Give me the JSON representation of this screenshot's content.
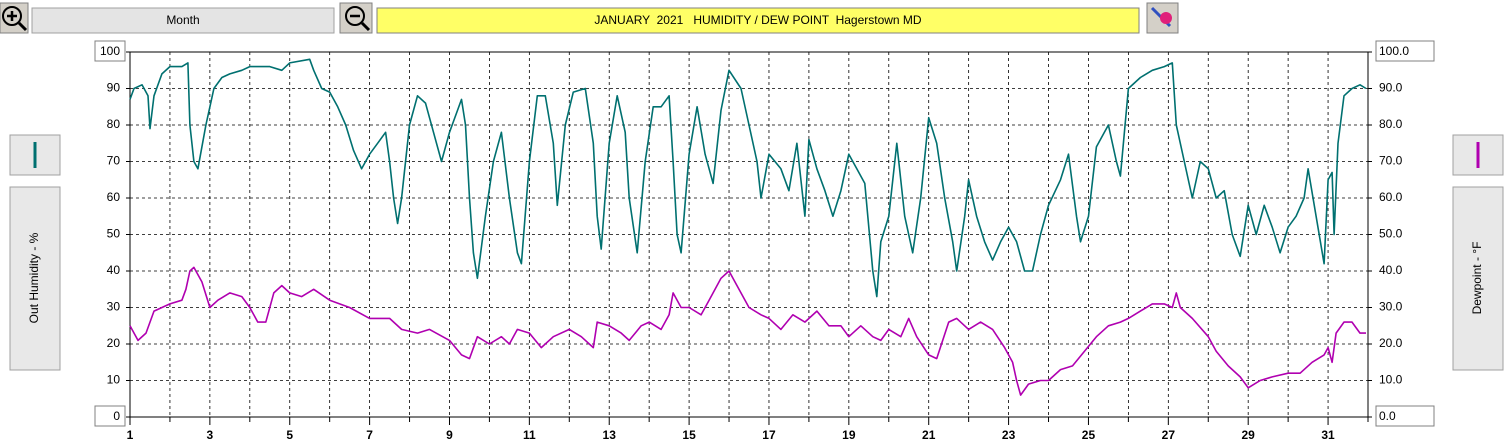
{
  "chart_data": {
    "type": "line",
    "title": "JANUARY  2021   HUMIDITY / DEW POINT  Hagerstown MD",
    "period_button": "Month",
    "ylabel": "Out Humidity - %",
    "y2label": "Dewpoint - °F",
    "xlim": [
      1,
      32
    ],
    "xticks": [
      1,
      3,
      5,
      7,
      9,
      11,
      13,
      15,
      17,
      19,
      21,
      23,
      25,
      27,
      29,
      31
    ],
    "x_minor_ticks": [
      2,
      4,
      6,
      8,
      10,
      12,
      14,
      16,
      18,
      20,
      22,
      24,
      26,
      28,
      30,
      32
    ],
    "ylim": [
      0,
      100
    ],
    "yticks": [
      0,
      10,
      20,
      30,
      40,
      50,
      60,
      70,
      80,
      90,
      100
    ],
    "y2lim": [
      0,
      100
    ],
    "y2ticks": [
      {
        "value": 0,
        "label": "0.0"
      },
      {
        "value": 10,
        "label": "10.0"
      },
      {
        "value": 20,
        "label": "20.0"
      },
      {
        "value": 30,
        "label": "30.0"
      },
      {
        "value": 40,
        "label": "40.0"
      },
      {
        "value": 50,
        "label": "50.0"
      },
      {
        "value": 60,
        "label": "60.0"
      },
      {
        "value": 70,
        "label": "70.0"
      },
      {
        "value": 80,
        "label": "80.0"
      },
      {
        "value": 90,
        "label": "90.0"
      },
      {
        "value": 100,
        "label": "100.0"
      }
    ],
    "grid": true,
    "series": [
      {
        "name": "Out Humidity",
        "color": "#007070",
        "axis": "y",
        "x": [
          1.0,
          1.1,
          1.3,
          1.45,
          1.5,
          1.6,
          1.8,
          2.0,
          2.3,
          2.45,
          2.5,
          2.6,
          2.7,
          2.9,
          3.0,
          3.1,
          3.3,
          3.5,
          3.8,
          4.0,
          4.5,
          4.8,
          5.0,
          5.5,
          5.6,
          5.8,
          6.0,
          6.2,
          6.4,
          6.6,
          6.8,
          7.0,
          7.2,
          7.4,
          7.5,
          7.6,
          7.7,
          7.8,
          8.0,
          8.2,
          8.4,
          8.6,
          8.8,
          9.0,
          9.2,
          9.3,
          9.4,
          9.5,
          9.6,
          9.7,
          9.9,
          10.1,
          10.3,
          10.5,
          10.7,
          10.8,
          11.0,
          11.2,
          11.4,
          11.6,
          11.7,
          11.9,
          12.1,
          12.4,
          12.6,
          12.7,
          12.8,
          13.0,
          13.2,
          13.4,
          13.5,
          13.7,
          13.9,
          14.1,
          14.3,
          14.5,
          14.6,
          14.7,
          14.8,
          15.0,
          15.2,
          15.4,
          15.6,
          15.8,
          16.0,
          16.3,
          16.5,
          16.7,
          16.8,
          17.0,
          17.3,
          17.5,
          17.7,
          17.9,
          18.0,
          18.2,
          18.4,
          18.6,
          18.8,
          19.0,
          19.2,
          19.4,
          19.6,
          19.7,
          19.8,
          20.0,
          20.2,
          20.4,
          20.5,
          20.6,
          20.8,
          21.0,
          21.2,
          21.4,
          21.6,
          21.7,
          21.9,
          22.0,
          22.2,
          22.4,
          22.6,
          22.8,
          23.0,
          23.2,
          23.4,
          23.6,
          23.8,
          24.0,
          24.3,
          24.5,
          24.7,
          24.8,
          25.0,
          25.2,
          25.4,
          25.5,
          25.7,
          25.8,
          26.0,
          26.3,
          26.6,
          26.9,
          27.1,
          27.2,
          27.4,
          27.6,
          27.8,
          28.0,
          28.2,
          28.4,
          28.6,
          28.8,
          29.0,
          29.2,
          29.4,
          29.6,
          29.8,
          30.0,
          30.2,
          30.4,
          30.5,
          30.7,
          30.9,
          31.0,
          31.1,
          31.15,
          31.25,
          31.4,
          31.6,
          31.8,
          31.95
        ],
        "values": [
          87,
          90,
          91,
          88,
          79,
          88,
          94,
          96,
          96,
          97,
          80,
          70,
          68,
          80,
          85,
          90,
          93,
          94,
          95,
          96,
          96,
          95,
          97,
          98,
          95,
          90,
          89,
          85,
          80,
          73,
          68,
          72,
          75,
          78,
          70,
          60,
          53,
          60,
          80,
          88,
          86,
          78,
          70,
          78,
          84,
          87,
          80,
          60,
          45,
          38,
          55,
          70,
          78,
          60,
          45,
          42,
          70,
          88,
          88,
          75,
          58,
          80,
          89,
          90,
          75,
          55,
          46,
          75,
          88,
          78,
          60,
          45,
          70,
          85,
          85,
          88,
          70,
          50,
          45,
          72,
          85,
          72,
          64,
          84,
          95,
          90,
          80,
          70,
          60,
          72,
          68,
          62,
          75,
          55,
          76,
          68,
          62,
          55,
          62,
          72,
          68,
          64,
          40,
          33,
          48,
          55,
          75,
          55,
          50,
          45,
          60,
          82,
          75,
          60,
          48,
          40,
          55,
          65,
          55,
          48,
          43,
          48,
          52,
          48,
          40,
          40,
          50,
          58,
          65,
          72,
          55,
          48,
          55,
          74,
          78,
          80,
          70,
          66,
          90,
          93,
          95,
          96,
          97,
          80,
          70,
          60,
          70,
          68,
          60,
          62,
          50,
          44,
          58,
          50,
          58,
          52,
          45,
          52,
          55,
          60,
          68,
          55,
          42,
          65,
          67,
          50,
          75,
          88,
          90,
          91,
          90
        ]
      },
      {
        "name": "Dewpoint",
        "color": "#b000b0",
        "axis": "y2",
        "x": [
          1.0,
          1.2,
          1.4,
          1.6,
          2.0,
          2.3,
          2.4,
          2.5,
          2.6,
          2.8,
          3.0,
          3.2,
          3.5,
          3.8,
          4.0,
          4.2,
          4.4,
          4.6,
          4.8,
          5.0,
          5.3,
          5.6,
          6.0,
          6.5,
          7.0,
          7.5,
          7.8,
          8.2,
          8.5,
          9.0,
          9.3,
          9.5,
          9.7,
          10.0,
          10.3,
          10.5,
          10.7,
          11.0,
          11.3,
          11.6,
          12.0,
          12.3,
          12.6,
          12.7,
          13.0,
          13.3,
          13.5,
          13.8,
          14.0,
          14.3,
          14.5,
          14.6,
          14.8,
          15.0,
          15.3,
          15.5,
          15.8,
          16.0,
          16.2,
          16.5,
          16.8,
          17.0,
          17.3,
          17.6,
          17.9,
          18.2,
          18.5,
          18.8,
          19.0,
          19.3,
          19.6,
          19.8,
          20.0,
          20.3,
          20.5,
          20.7,
          21.0,
          21.2,
          21.5,
          21.7,
          22.0,
          22.3,
          22.6,
          22.9,
          23.1,
          23.2,
          23.3,
          23.5,
          23.8,
          24.0,
          24.3,
          24.6,
          24.9,
          25.2,
          25.5,
          25.8,
          26.0,
          26.3,
          26.6,
          26.9,
          27.1,
          27.2,
          27.3,
          27.6,
          28.0,
          28.2,
          28.5,
          28.8,
          29.0,
          29.3,
          29.6,
          30.0,
          30.3,
          30.6,
          30.9,
          31.0,
          31.1,
          31.2,
          31.4,
          31.6,
          31.8,
          31.95
        ],
        "values": [
          25,
          21,
          23,
          29,
          31,
          32,
          35,
          40,
          41,
          37,
          30,
          32,
          34,
          33,
          30,
          26,
          26,
          34,
          36,
          34,
          33,
          35,
          32,
          30,
          27,
          27,
          24,
          23,
          24,
          21,
          17,
          16,
          22,
          20,
          22,
          20,
          24,
          23,
          19,
          22,
          24,
          22,
          19,
          26,
          25,
          23,
          21,
          25,
          26,
          24,
          28,
          34,
          30,
          30,
          28,
          32,
          38,
          40,
          36,
          30,
          28,
          27,
          24,
          28,
          26,
          29,
          25,
          25,
          22,
          25,
          22,
          21,
          24,
          22,
          27,
          22,
          17,
          16,
          26,
          27,
          24,
          26,
          24,
          19,
          15,
          10,
          6,
          9,
          10,
          10,
          13,
          14,
          18,
          22,
          25,
          26,
          27,
          29,
          31,
          31,
          30,
          34,
          30,
          27,
          22,
          18,
          14,
          11,
          8,
          10,
          11,
          12,
          12,
          15,
          17,
          19,
          15,
          23,
          26,
          26,
          23,
          23
        ]
      }
    ]
  }
}
